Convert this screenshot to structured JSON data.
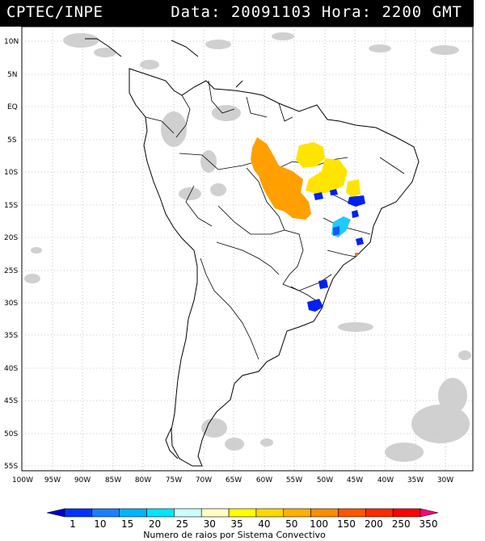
{
  "header": {
    "source": "CPTEC/INPE",
    "data_label": "Data: 20091103",
    "hora_label": "Hora: 2200 GMT"
  },
  "map": {
    "lat_labels": [
      "10N",
      "5N",
      "EQ",
      "5S",
      "10S",
      "15S",
      "20S",
      "25S",
      "30S",
      "35S",
      "40S",
      "45S",
      "50S",
      "55S"
    ],
    "lon_labels": [
      "100W",
      "95W",
      "90W",
      "85W",
      "80W",
      "75W",
      "70W",
      "65W",
      "60W",
      "55W",
      "50W",
      "45W",
      "40W",
      "35W",
      "30W"
    ]
  },
  "colorbar": {
    "labels": [
      "1",
      "10",
      "15",
      "20",
      "25",
      "30",
      "35",
      "40",
      "50",
      "100",
      "150",
      "200",
      "250",
      "350"
    ],
    "colors": [
      "#0000cc",
      "#0033ff",
      "#1a80ff",
      "#00b3ff",
      "#00e5ff",
      "#c8ffff",
      "#ffffc0",
      "#ffff00",
      "#ffd700",
      "#ffb000",
      "#ff8c00",
      "#ff5500",
      "#ff2a00",
      "#ff0000",
      "#ff0077"
    ],
    "title": "Numero de raios por Sistema Convectivo"
  },
  "legend_colors": {
    "cloud_gray": "#c8c8c8",
    "orange_system": "#ffa000",
    "yellow_system": "#ffe400",
    "blue_system": "#0022ee"
  }
}
